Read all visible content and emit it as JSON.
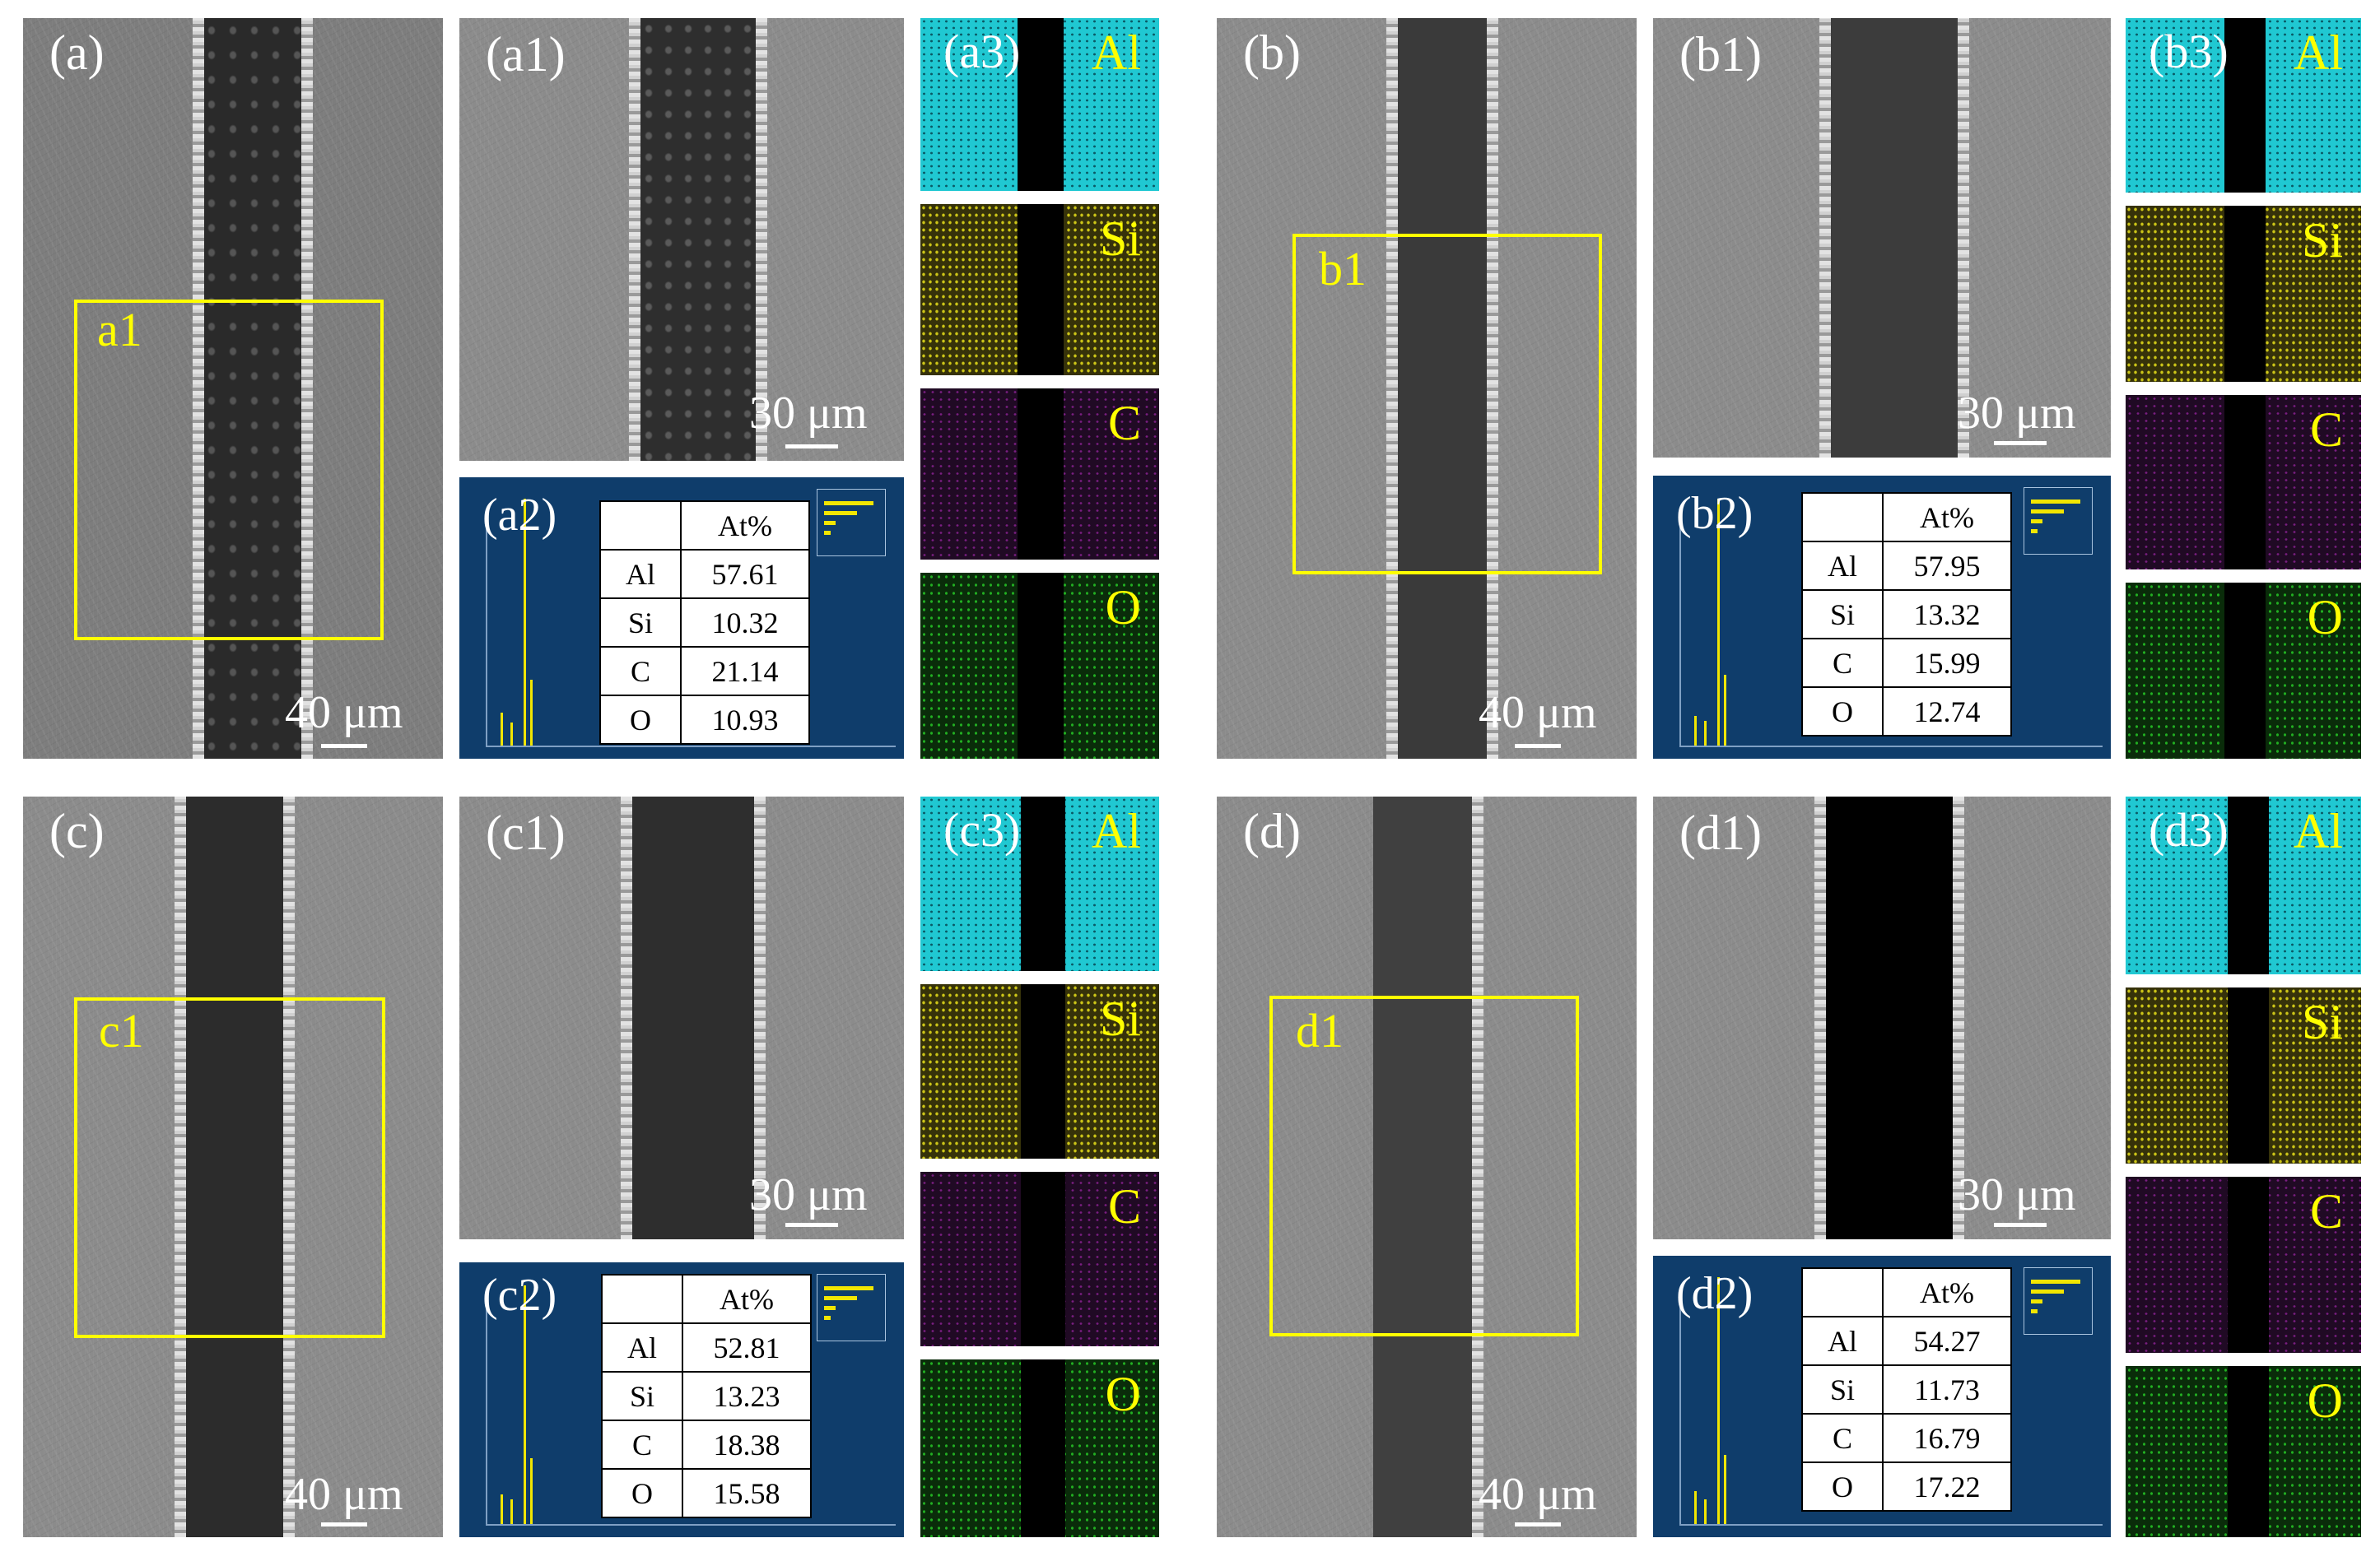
{
  "figure": {
    "groups": [
      {
        "id": "a",
        "main_label": "(a)",
        "box_label": "a1",
        "main_scale": "40 μm",
        "zoom_label": "(a1)",
        "zoom_scale": "30 μm",
        "eds_label": "(a2)",
        "map_label": "(a3)",
        "table": {
          "header": "At%",
          "rows": [
            {
              "el": "Al",
              "val": "57.61"
            },
            {
              "el": "Si",
              "val": "10.32"
            },
            {
              "el": "C",
              "val": "21.14"
            },
            {
              "el": "O",
              "val": "10.93"
            }
          ]
        }
      },
      {
        "id": "b",
        "main_label": "(b)",
        "box_label": "b1",
        "main_scale": "40 μm",
        "zoom_label": "(b1)",
        "zoom_scale": "30 μm",
        "eds_label": "(b2)",
        "map_label": "(b3)",
        "table": {
          "header": "At%",
          "rows": [
            {
              "el": "Al",
              "val": "57.95"
            },
            {
              "el": "Si",
              "val": "13.32"
            },
            {
              "el": "C",
              "val": "15.99"
            },
            {
              "el": "O",
              "val": "12.74"
            }
          ]
        }
      },
      {
        "id": "c",
        "main_label": "(c)",
        "box_label": "c1",
        "main_scale": "40 μm",
        "zoom_label": "(c1)",
        "zoom_scale": "30 μm",
        "eds_label": "(c2)",
        "map_label": "(c3)",
        "table": {
          "header": "At%",
          "rows": [
            {
              "el": "Al",
              "val": "52.81"
            },
            {
              "el": "Si",
              "val": "13.23"
            },
            {
              "el": "C",
              "val": "18.38"
            },
            {
              "el": "O",
              "val": "15.58"
            }
          ]
        }
      },
      {
        "id": "d",
        "main_label": "(d)",
        "box_label": "d1",
        "main_scale": "40 μm",
        "zoom_label": "(d1)",
        "zoom_scale": "30 μm",
        "eds_label": "(d2)",
        "map_label": "(d3)",
        "table": {
          "header": "At%",
          "rows": [
            {
              "el": "Al",
              "val": "54.27"
            },
            {
              "el": "Si",
              "val": "11.73"
            },
            {
              "el": "C",
              "val": "16.79"
            },
            {
              "el": "O",
              "val": "17.22"
            }
          ]
        }
      }
    ],
    "map_elements": [
      "Al",
      "Si",
      "C",
      "O"
    ],
    "colors": {
      "box": "#ffff00",
      "element_label": "#ffff00",
      "eds_background": "#0f3d6b",
      "al_map": "#20c8d2",
      "si_map": "#ccc518",
      "c_map": "#7a1e82",
      "o_map": "#22b022"
    }
  }
}
